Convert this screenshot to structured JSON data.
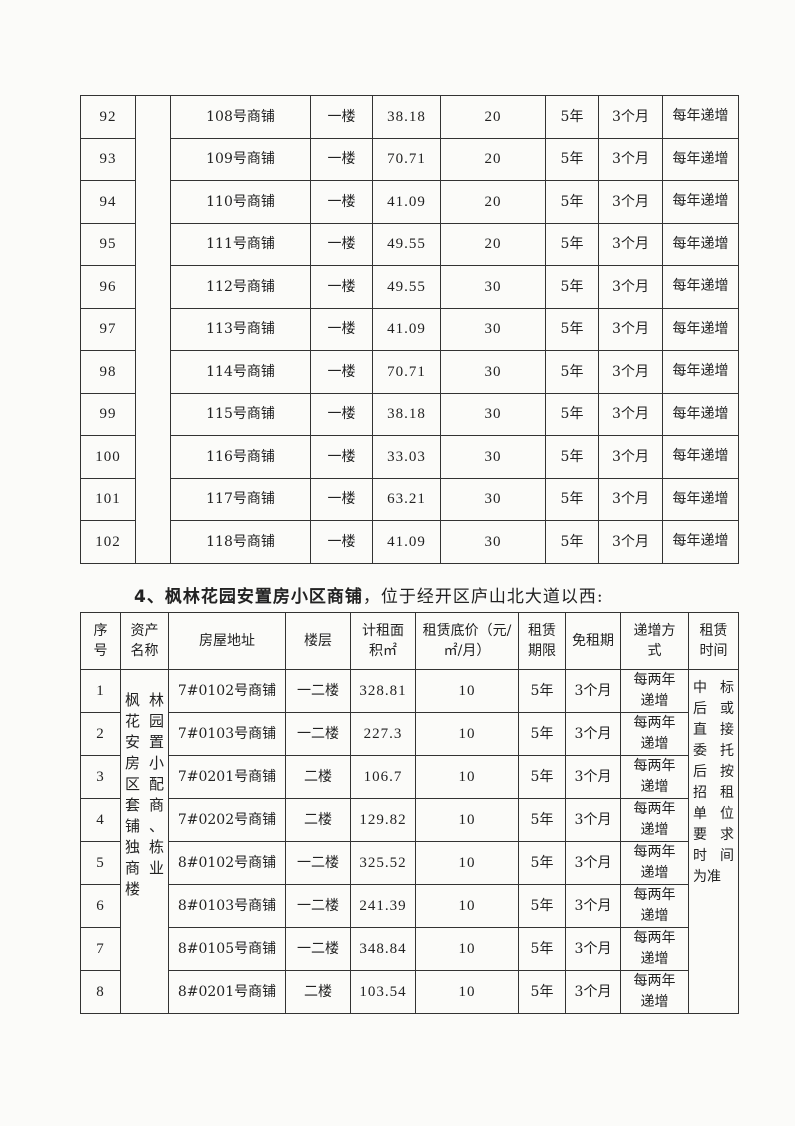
{
  "table1": {
    "rows": [
      [
        "92",
        "108号商铺",
        "一楼",
        "38.18",
        "20",
        "5年",
        "3个月",
        "每年递增"
      ],
      [
        "93",
        "109号商铺",
        "一楼",
        "70.71",
        "20",
        "5年",
        "3个月",
        "每年递增"
      ],
      [
        "94",
        "110号商铺",
        "一楼",
        "41.09",
        "20",
        "5年",
        "3个月",
        "每年递增"
      ],
      [
        "95",
        "111号商铺",
        "一楼",
        "49.55",
        "20",
        "5年",
        "3个月",
        "每年递增"
      ],
      [
        "96",
        "112号商铺",
        "一楼",
        "49.55",
        "30",
        "5年",
        "3个月",
        "每年递增"
      ],
      [
        "97",
        "113号商铺",
        "一楼",
        "41.09",
        "30",
        "5年",
        "3个月",
        "每年递增"
      ],
      [
        "98",
        "114号商铺",
        "一楼",
        "70.71",
        "30",
        "5年",
        "3个月",
        "每年递增"
      ],
      [
        "99",
        "115号商铺",
        "一楼",
        "38.18",
        "30",
        "5年",
        "3个月",
        "每年递增"
      ],
      [
        "100",
        "116号商铺",
        "一楼",
        "33.03",
        "30",
        "5年",
        "3个月",
        "每年递增"
      ],
      [
        "101",
        "117号商铺",
        "一楼",
        "63.21",
        "30",
        "5年",
        "3个月",
        "每年递增"
      ],
      [
        "102",
        "118号商铺",
        "一楼",
        "41.09",
        "30",
        "5年",
        "3个月",
        "每年递增"
      ]
    ]
  },
  "section4": {
    "title_bold": "4、枫林花园安置房小区商铺",
    "title_rest": "，位于经开区庐山北大道以西:"
  },
  "table2": {
    "headers": [
      "序号",
      "资产名称",
      "房屋地址",
      "楼层",
      "计租面积㎡",
      "租赁底价（元/㎡/月）",
      "租赁期限",
      "免租期",
      "递增方式",
      "租赁时间"
    ],
    "asset_name": "枫林花园安置房小区配套商铺、独栋商业楼",
    "lease_time": "中标后或直接委托后按招租单位要求时间为准",
    "rows": [
      [
        "1",
        "7#0102号商铺",
        "一二楼",
        "328.81",
        "10",
        "5年",
        "3个月",
        "每两年递增"
      ],
      [
        "2",
        "7#0103号商铺",
        "一二楼",
        "227.3",
        "10",
        "5年",
        "3个月",
        "每两年递增"
      ],
      [
        "3",
        "7#0201号商铺",
        "二楼",
        "106.7",
        "10",
        "5年",
        "3个月",
        "每两年递增"
      ],
      [
        "4",
        "7#0202号商铺",
        "二楼",
        "129.82",
        "10",
        "5年",
        "3个月",
        "每两年递增"
      ],
      [
        "5",
        "8#0102号商铺",
        "一二楼",
        "325.52",
        "10",
        "5年",
        "3个月",
        "每两年递增"
      ],
      [
        "6",
        "8#0103号商铺",
        "一二楼",
        "241.39",
        "10",
        "5年",
        "3个月",
        "每两年递增"
      ],
      [
        "7",
        "8#0105号商铺",
        "一二楼",
        "348.84",
        "10",
        "5年",
        "3个月",
        "每两年递增"
      ],
      [
        "8",
        "8#0201号商铺",
        "二楼",
        "103.54",
        "10",
        "5年",
        "3个月",
        "每两年递增"
      ]
    ]
  }
}
